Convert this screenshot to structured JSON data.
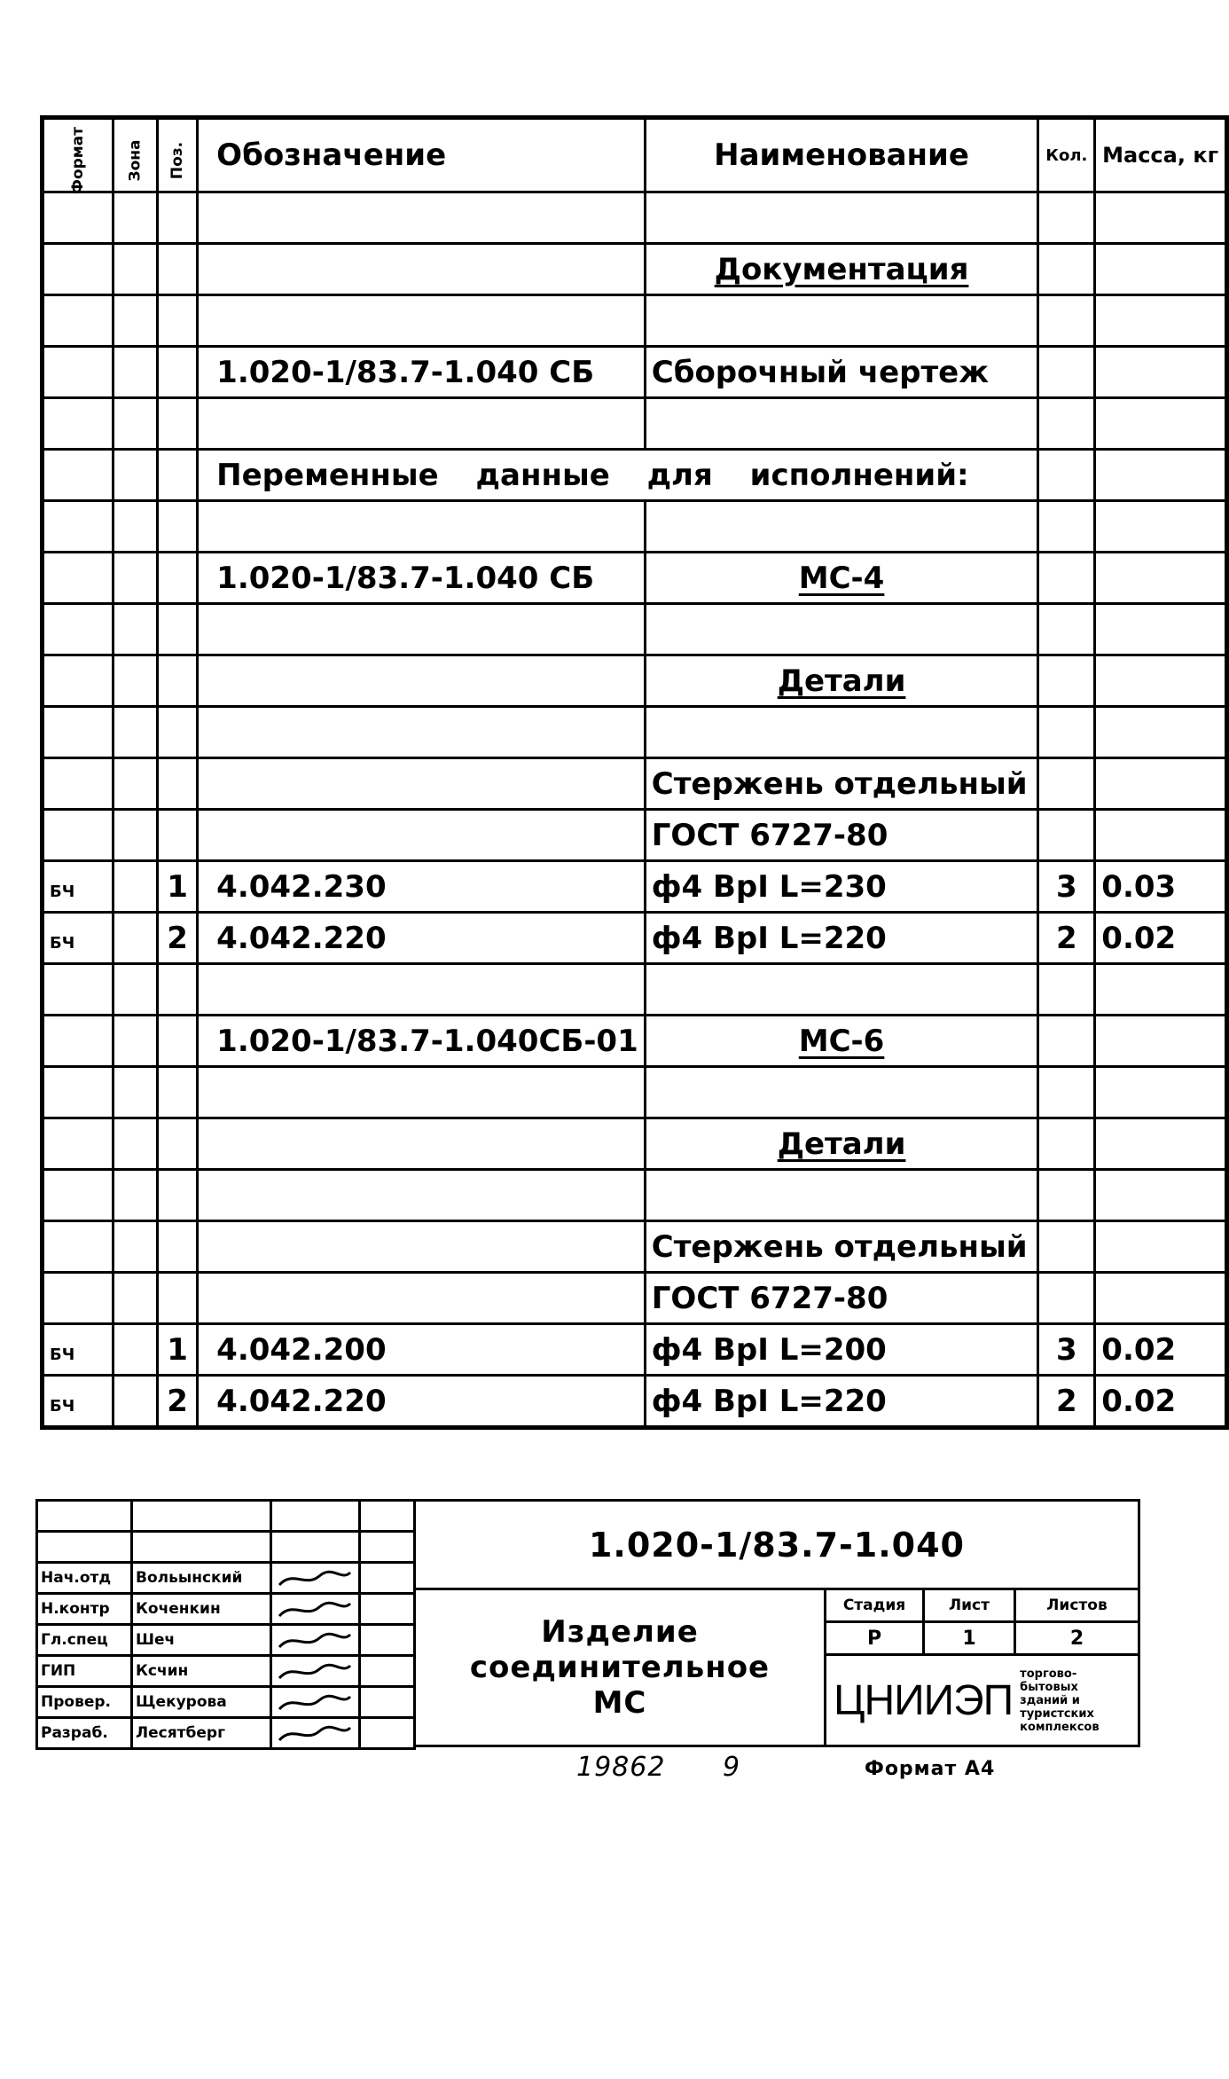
{
  "header": {
    "format": "Формат",
    "zone": "Зона",
    "pos": "Поз.",
    "designation": "Обозначение",
    "name": "Наименование",
    "qty": "Кол.",
    "mass": "Масса, кг"
  },
  "rows": [
    {},
    {
      "name": "Документация",
      "style": "section"
    },
    {},
    {
      "designation": "1.020-1/83.7-1.040 СБ",
      "name": "Сборочный чертеж"
    },
    {},
    {
      "span": "Переменные данные для исполнений:"
    },
    {},
    {
      "designation": "1.020-1/83.7-1.040 СБ",
      "name": "МС-4",
      "style": "section"
    },
    {},
    {
      "name": "Детали",
      "style": "section"
    },
    {},
    {
      "name": "Стержень отдельный"
    },
    {
      "name": "ГОСТ 6727-80"
    },
    {
      "format": "БЧ",
      "pos": "1",
      "designation": "4.042.230",
      "name": "ф4 ВрI  L=230",
      "qty": "3",
      "mass": "0.03"
    },
    {
      "format": "БЧ",
      "pos": "2",
      "designation": "4.042.220",
      "name": "ф4 ВрI  L=220",
      "qty": "2",
      "mass": "0.02"
    },
    {},
    {
      "designation": "1.020-1/83.7-1.040СБ-01",
      "name": "МС-6",
      "style": "section"
    },
    {},
    {
      "name": "Детали",
      "style": "section"
    },
    {},
    {
      "name": "Стержень отдельный"
    },
    {
      "name": "ГОСТ 6727-80"
    },
    {
      "format": "БЧ",
      "pos": "1",
      "designation": "4.042.200",
      "name": "ф4 ВрI  L=200",
      "qty": "3",
      "mass": "0.02"
    },
    {
      "format": "БЧ",
      "pos": "2",
      "designation": "4.042.220",
      "name": "ф4 ВрI  L=220",
      "qty": "2",
      "mass": "0.02"
    }
  ],
  "title_block": {
    "document_code": "1.020-1/83.7-1.040",
    "product_name": "Изделие соединительное МС",
    "stage_label": "Стадия",
    "stage": "Р",
    "sheet_label": "Лист",
    "sheet": "1",
    "sheets_label": "Листов",
    "sheets": "2",
    "organization_logo": "ЦНИИЭП",
    "organization": "торгово-бытовых зданий и туристских комплексов",
    "signatures": [
      {
        "role": "Нач.отд",
        "surname": "Вольынский"
      },
      {
        "role": "Н.контр",
        "surname": "Коченкин"
      },
      {
        "role": "Гл.спец",
        "surname": "Шеч"
      },
      {
        "role": "ГИП",
        "surname": "Ксчин"
      },
      {
        "role": "Провер.",
        "surname": "Щекурова"
      },
      {
        "role": "Разраб.",
        "surname": "Лесятберг"
      }
    ]
  },
  "footer": {
    "inventory_number": "19862",
    "page_number": "9",
    "format": "Формат А4"
  }
}
